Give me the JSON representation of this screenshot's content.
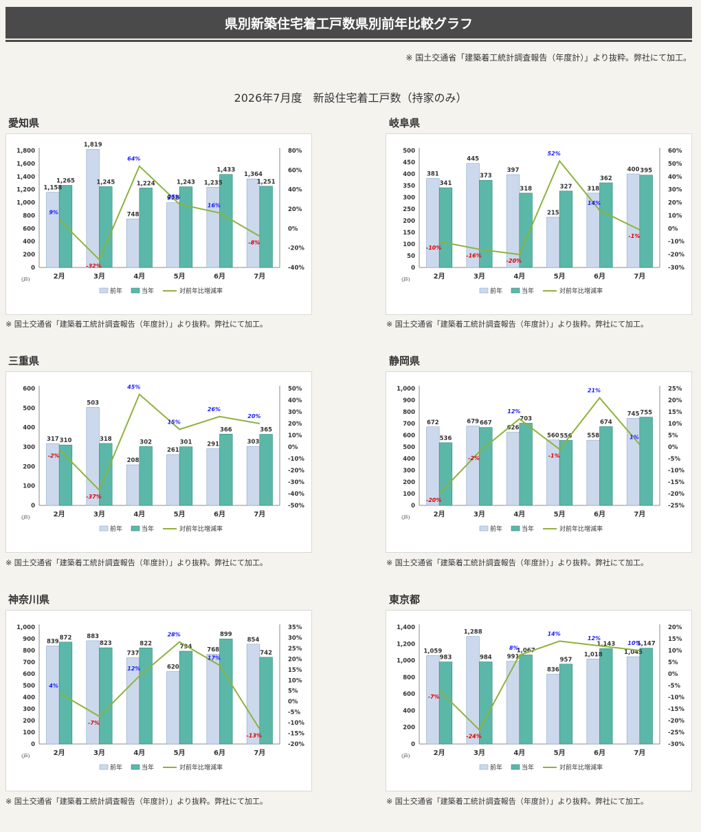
{
  "header": {
    "title": "県別新築住宅着工戸数県別前年比較グラフ"
  },
  "source_note": "※ 国土交通省「建築着工統計調査報告（年度計）」より抜粋。弊社にて加工。",
  "subtitle": "2026年7月度　新設住宅着工戸数（持家のみ）",
  "colors": {
    "prev": "#ccd9ec",
    "curr": "#5bb8a8",
    "line": "#8db23a",
    "pos_label": "#1a1aff",
    "neg_label": "#e00000"
  },
  "chart_data": [
    {
      "type": "bar",
      "name": "愛知県",
      "unit": "(戸)",
      "categories": [
        "2月",
        "3月",
        "4月",
        "5月",
        "6月",
        "7月"
      ],
      "series": [
        {
          "name": "前年",
          "values": [
            1158,
            1819,
            748,
            998,
            1235,
            1364
          ]
        },
        {
          "name": "当年",
          "values": [
            1265,
            1245,
            1224,
            1243,
            1433,
            1251
          ]
        }
      ],
      "line": {
        "name": "対前年比増減率",
        "values": [
          9,
          -32,
          64,
          25,
          16,
          -8
        ],
        "labels": [
          "9%",
          "-32%",
          "64%",
          "25%",
          "16%",
          "-8%"
        ]
      },
      "ylim": [
        0,
        1800
      ],
      "yticks": [
        "0",
        "200",
        "400",
        "600",
        "800",
        "1,000",
        "1,200",
        "1,400",
        "1,600",
        "1,800"
      ],
      "y2lim": [
        -40,
        80
      ],
      "y2ticks": [
        "-40%",
        "-20%",
        "0%",
        "20%",
        "40%",
        "60%",
        "80%"
      ],
      "bar_labels_prev": [
        "1,158",
        "1,819",
        "748",
        "998",
        "1,235",
        "1,364"
      ],
      "bar_labels_curr": [
        "1,265",
        "1,245",
        "1,224",
        "1,243",
        "1,433",
        "1,251"
      ],
      "legend": [
        "前年",
        "当年",
        "対前年比増減率"
      ]
    },
    {
      "type": "bar",
      "name": "岐阜県",
      "unit": "(戸)",
      "categories": [
        "2月",
        "3月",
        "4月",
        "5月",
        "6月",
        "7月"
      ],
      "series": [
        {
          "name": "前年",
          "values": [
            381,
            445,
            397,
            215,
            318,
            400
          ]
        },
        {
          "name": "当年",
          "values": [
            341,
            373,
            318,
            327,
            362,
            395
          ]
        }
      ],
      "line": {
        "name": "対前年比増減率",
        "values": [
          -10,
          -16,
          -20,
          52,
          14,
          -1
        ],
        "labels": [
          "-10%",
          "-16%",
          "-20%",
          "52%",
          "14%",
          "-1%"
        ]
      },
      "ylim": [
        0,
        500
      ],
      "yticks": [
        "0",
        "50",
        "100",
        "150",
        "200",
        "250",
        "300",
        "350",
        "400",
        "450",
        "500"
      ],
      "y2lim": [
        -30,
        60
      ],
      "y2ticks": [
        "-30%",
        "-20%",
        "-10%",
        "0%",
        "10%",
        "20%",
        "30%",
        "40%",
        "50%",
        "60%"
      ],
      "bar_labels_prev": [
        "381",
        "445",
        "397",
        "215",
        "318",
        "400"
      ],
      "bar_labels_curr": [
        "341",
        "373",
        "318",
        "327",
        "362",
        "395"
      ],
      "legend": [
        "前年",
        "当年",
        "対前年比増減率"
      ]
    },
    {
      "type": "bar",
      "name": "三重県",
      "unit": "(戸)",
      "categories": [
        "2月",
        "3月",
        "4月",
        "5月",
        "6月",
        "7月"
      ],
      "series": [
        {
          "name": "前年",
          "values": [
            317,
            503,
            208,
            261,
            291,
            303
          ]
        },
        {
          "name": "当年",
          "values": [
            310,
            318,
            302,
            301,
            366,
            365
          ]
        }
      ],
      "line": {
        "name": "対前年比増減率",
        "values": [
          -2,
          -37,
          45,
          15,
          26,
          20
        ],
        "labels": [
          "-2%",
          "-37%",
          "45%",
          "15%",
          "26%",
          "20%"
        ]
      },
      "ylim": [
        0,
        600
      ],
      "yticks": [
        "0",
        "100",
        "200",
        "300",
        "400",
        "500",
        "600"
      ],
      "y2lim": [
        -50,
        50
      ],
      "y2ticks": [
        "-50%",
        "-40%",
        "-30%",
        "-20%",
        "-10%",
        "0%",
        "10%",
        "20%",
        "30%",
        "40%",
        "50%"
      ],
      "bar_labels_prev": [
        "317",
        "503",
        "208",
        "261",
        "291",
        "303"
      ],
      "bar_labels_curr": [
        "310",
        "318",
        "302",
        "301",
        "366",
        "365"
      ],
      "legend": [
        "前年",
        "当年",
        "対前年比増減率"
      ]
    },
    {
      "type": "bar",
      "name": "静岡県",
      "unit": "(戸)",
      "categories": [
        "2月",
        "3月",
        "4月",
        "5月",
        "6月",
        "7月"
      ],
      "series": [
        {
          "name": "前年",
          "values": [
            672,
            679,
            626,
            560,
            558,
            745
          ]
        },
        {
          "name": "当年",
          "values": [
            536,
            667,
            703,
            556,
            674,
            755
          ]
        }
      ],
      "line": {
        "name": "対前年比増減率",
        "values": [
          -20,
          -2,
          12,
          -1,
          21,
          1
        ],
        "labels": [
          "-20%",
          "-2%",
          "12%",
          "-1%",
          "21%",
          "1%"
        ]
      },
      "ylim": [
        0,
        1000
      ],
      "yticks": [
        "0",
        "100",
        "200",
        "300",
        "400",
        "500",
        "600",
        "700",
        "800",
        "900",
        "1,000"
      ],
      "y2lim": [
        -25,
        25
      ],
      "y2ticks": [
        "-25%",
        "-20%",
        "-15%",
        "-10%",
        "-5%",
        "0%",
        "5%",
        "10%",
        "15%",
        "20%",
        "25%"
      ],
      "bar_labels_prev": [
        "672",
        "679",
        "626",
        "560",
        "558",
        "745"
      ],
      "bar_labels_curr": [
        "536",
        "667",
        "703",
        "556",
        "674",
        "755"
      ],
      "legend": [
        "前年",
        "当年",
        "対前年比増減率"
      ]
    },
    {
      "type": "bar",
      "name": "神奈川県",
      "unit": "(戸)",
      "categories": [
        "2月",
        "3月",
        "4月",
        "5月",
        "6月",
        "7月"
      ],
      "series": [
        {
          "name": "前年",
          "values": [
            839,
            883,
            737,
            620,
            768,
            854
          ]
        },
        {
          "name": "当年",
          "values": [
            872,
            823,
            822,
            794,
            899,
            742
          ]
        }
      ],
      "line": {
        "name": "対前年比増減率",
        "values": [
          4,
          -7,
          12,
          28,
          17,
          -13
        ],
        "labels": [
          "4%",
          "-7%",
          "12%",
          "28%",
          "17%",
          "-13%"
        ]
      },
      "ylim": [
        0,
        1000
      ],
      "yticks": [
        "0",
        "100",
        "200",
        "300",
        "400",
        "500",
        "600",
        "700",
        "800",
        "900",
        "1,000"
      ],
      "y2lim": [
        -20,
        35
      ],
      "y2ticks": [
        "-20%",
        "-15%",
        "-10%",
        "-5%",
        "0%",
        "5%",
        "10%",
        "15%",
        "20%",
        "25%",
        "30%",
        "35%"
      ],
      "bar_labels_prev": [
        "839",
        "883",
        "737",
        "620",
        "768",
        "854"
      ],
      "bar_labels_curr": [
        "872",
        "823",
        "822",
        "794",
        "899",
        "742"
      ],
      "legend": [
        "前年",
        "当年",
        "対前年比増減率"
      ]
    },
    {
      "type": "bar",
      "name": "東京都",
      "unit": "(戸)",
      "categories": [
        "2月",
        "3月",
        "4月",
        "5月",
        "6月",
        "7月"
      ],
      "series": [
        {
          "name": "前年",
          "values": [
            1059,
            1288,
            991,
            836,
            1018,
            1045
          ]
        },
        {
          "name": "当年",
          "values": [
            983,
            984,
            1067,
            957,
            1143,
            1147
          ]
        }
      ],
      "line": {
        "name": "対前年比増減率",
        "values": [
          -7,
          -24,
          8,
          14,
          12,
          10
        ],
        "labels": [
          "-7%",
          "-24%",
          "8%",
          "14%",
          "12%",
          "10%"
        ]
      },
      "ylim": [
        0,
        1400
      ],
      "yticks": [
        "0",
        "200",
        "400",
        "600",
        "800",
        "1,000",
        "1,200",
        "1,400"
      ],
      "y2lim": [
        -30,
        20
      ],
      "y2ticks": [
        "-30%",
        "-25%",
        "-20%",
        "-15%",
        "-10%",
        "-5%",
        "0%",
        "5%",
        "10%",
        "15%",
        "20%"
      ],
      "bar_labels_prev": [
        "1,059",
        "1,288",
        "991",
        "836",
        "1,018",
        "1,045"
      ],
      "bar_labels_curr": [
        "983",
        "984",
        "1,067",
        "957",
        "1,143",
        "1,147"
      ],
      "legend": [
        "前年",
        "当年",
        "対前年比増減率"
      ]
    }
  ]
}
